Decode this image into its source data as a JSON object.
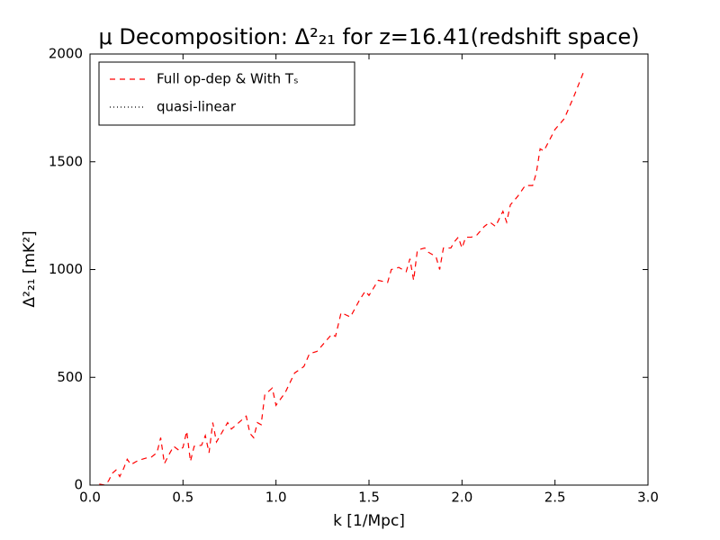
{
  "chart_data": {
    "type": "line",
    "title": "μ Decomposition: Δ²₂₁ for z=16.41(redshift space)",
    "x_label": "k [1/Mpc]",
    "y_label": "Δ²₂₁ [mK²]",
    "x": [
      0.05,
      0.08,
      0.1,
      0.12,
      0.14,
      0.16,
      0.18,
      0.2,
      0.22,
      0.25,
      0.28,
      0.3,
      0.33,
      0.36,
      0.38,
      0.4,
      0.43,
      0.45,
      0.48,
      0.5,
      0.52,
      0.54,
      0.56,
      0.6,
      0.62,
      0.64,
      0.66,
      0.68,
      0.72,
      0.74,
      0.76,
      0.8,
      0.84,
      0.86,
      0.88,
      0.9,
      0.92,
      0.94,
      0.98,
      1.0,
      1.05,
      1.1,
      1.15,
      1.18,
      1.22,
      1.26,
      1.3,
      1.32,
      1.35,
      1.4,
      1.45,
      1.48,
      1.5,
      1.55,
      1.6,
      1.62,
      1.66,
      1.7,
      1.72,
      1.74,
      1.76,
      1.8,
      1.82,
      1.86,
      1.88,
      1.9,
      1.94,
      1.96,
      1.98,
      2.0,
      2.02,
      2.05,
      2.08,
      2.12,
      2.15,
      2.18,
      2.22,
      2.24,
      2.26,
      2.3,
      2.34,
      2.38,
      2.4,
      2.42,
      2.44,
      2.5,
      2.55,
      2.6,
      2.66
    ],
    "series": [
      {
        "name": "Full op-dep & With Tₛ",
        "color": "#ff0000",
        "dash": "6,5",
        "values": [
          5,
          0,
          20,
          55,
          70,
          40,
          75,
          120,
          95,
          110,
          120,
          125,
          130,
          150,
          220,
          100,
          150,
          180,
          160,
          175,
          250,
          110,
          180,
          185,
          230,
          150,
          290,
          200,
          260,
          290,
          260,
          290,
          320,
          240,
          220,
          290,
          280,
          420,
          450,
          370,
          430,
          520,
          550,
          610,
          620,
          660,
          700,
          690,
          800,
          780,
          860,
          900,
          880,
          950,
          940,
          1000,
          1010,
          990,
          1050,
          950,
          1090,
          1100,
          1080,
          1060,
          1000,
          1100,
          1100,
          1130,
          1150,
          1100,
          1150,
          1150,
          1160,
          1200,
          1220,
          1200,
          1270,
          1220,
          1300,
          1340,
          1390,
          1390,
          1450,
          1560,
          1550,
          1650,
          1700,
          1800,
          1930
        ]
      },
      {
        "name": "quasi-linear",
        "color": "#000000",
        "dash": "1,3",
        "values": [
          null,
          null,
          null,
          null,
          null,
          null,
          null,
          null,
          null,
          null,
          null,
          null,
          null,
          null,
          null,
          null,
          null,
          null,
          null,
          null,
          null,
          null,
          null,
          null,
          null,
          null,
          null,
          null,
          null,
          null,
          null,
          null,
          null,
          null,
          null,
          null,
          null,
          null,
          null,
          null,
          null,
          null,
          null,
          null,
          null,
          null,
          null,
          null,
          null,
          null,
          null,
          null,
          null,
          null,
          null,
          null,
          null,
          null,
          null,
          null,
          null,
          null,
          null,
          null,
          null,
          null,
          null,
          null,
          null,
          null,
          null,
          null,
          null,
          null,
          null,
          null,
          null,
          null,
          null,
          null,
          null,
          null,
          null,
          null,
          null,
          null,
          null,
          null,
          null
        ]
      }
    ],
    "xlim": [
      0,
      3
    ],
    "ylim": [
      0,
      2000
    ],
    "xticks": [
      {
        "value": 0,
        "label": "0.0"
      },
      0.5,
      {
        "value": 1,
        "label": "1.0"
      },
      1.5,
      {
        "value": 2,
        "label": "2.0"
      },
      2.5,
      {
        "value": 3,
        "label": "3.0"
      }
    ],
    "yticks": [
      0,
      500,
      1000,
      1500,
      2000
    ],
    "grid": false,
    "legend": "upper-left"
  }
}
